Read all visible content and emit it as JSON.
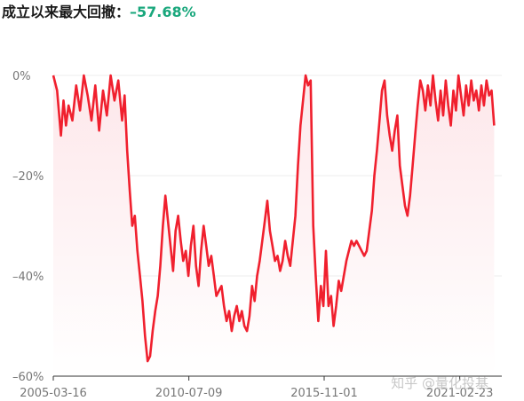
{
  "header": {
    "label": "成立以来最大回撤：",
    "value": "–57.68%"
  },
  "watermark": "知乎 @量化投基",
  "colors": {
    "line": "#f0202e",
    "fill_top": "#fde7ea",
    "grid": "#eeeeee",
    "axis": "#333333",
    "value_green": "#19a77c"
  },
  "chart_data": {
    "type": "area",
    "title": "",
    "xlabel": "",
    "ylabel": "",
    "ylim": [
      -60,
      0
    ],
    "y_ticks": [
      "0%",
      "–20%",
      "–40%",
      "–60%"
    ],
    "y_tick_values": [
      0,
      -20,
      -40,
      -60
    ],
    "x_ticks": [
      "2005-03-16",
      "2010-07-09",
      "2015-11-01",
      "2021-02-23"
    ],
    "x_tick_years": [
      2005.2,
      2010.52,
      2015.83,
      2021.15
    ],
    "x_range": [
      2005.2,
      2022.8
    ],
    "grid": true,
    "series": [
      {
        "values": [
          [
            2005.2,
            0
          ],
          [
            2005.35,
            -3
          ],
          [
            2005.5,
            -12
          ],
          [
            2005.6,
            -5
          ],
          [
            2005.7,
            -10
          ],
          [
            2005.8,
            -6
          ],
          [
            2005.95,
            -9
          ],
          [
            2006.1,
            -2
          ],
          [
            2006.25,
            -7
          ],
          [
            2006.4,
            0
          ],
          [
            2006.55,
            -4
          ],
          [
            2006.7,
            -9
          ],
          [
            2006.85,
            -2
          ],
          [
            2007.0,
            -11
          ],
          [
            2007.15,
            -3
          ],
          [
            2007.3,
            -8
          ],
          [
            2007.45,
            0
          ],
          [
            2007.6,
            -5
          ],
          [
            2007.75,
            -1
          ],
          [
            2007.9,
            -9
          ],
          [
            2008.0,
            -4
          ],
          [
            2008.1,
            -15
          ],
          [
            2008.2,
            -23
          ],
          [
            2008.3,
            -30
          ],
          [
            2008.4,
            -28
          ],
          [
            2008.5,
            -35
          ],
          [
            2008.6,
            -40
          ],
          [
            2008.7,
            -45
          ],
          [
            2008.8,
            -52
          ],
          [
            2008.9,
            -57
          ],
          [
            2009.0,
            -56
          ],
          [
            2009.1,
            -51
          ],
          [
            2009.2,
            -47
          ],
          [
            2009.3,
            -44
          ],
          [
            2009.4,
            -38
          ],
          [
            2009.5,
            -30
          ],
          [
            2009.6,
            -24
          ],
          [
            2009.7,
            -29
          ],
          [
            2009.8,
            -34
          ],
          [
            2009.9,
            -39
          ],
          [
            2010.0,
            -31
          ],
          [
            2010.1,
            -28
          ],
          [
            2010.2,
            -33
          ],
          [
            2010.3,
            -37
          ],
          [
            2010.4,
            -35
          ],
          [
            2010.5,
            -40
          ],
          [
            2010.6,
            -34
          ],
          [
            2010.7,
            -30
          ],
          [
            2010.8,
            -38
          ],
          [
            2010.9,
            -42
          ],
          [
            2011.0,
            -35
          ],
          [
            2011.1,
            -30
          ],
          [
            2011.2,
            -34
          ],
          [
            2011.3,
            -38
          ],
          [
            2011.4,
            -36
          ],
          [
            2011.5,
            -40
          ],
          [
            2011.6,
            -44
          ],
          [
            2011.7,
            -43
          ],
          [
            2011.8,
            -42
          ],
          [
            2011.9,
            -46
          ],
          [
            2012.0,
            -49
          ],
          [
            2012.1,
            -47
          ],
          [
            2012.2,
            -51
          ],
          [
            2012.3,
            -48
          ],
          [
            2012.4,
            -46
          ],
          [
            2012.5,
            -49
          ],
          [
            2012.6,
            -47
          ],
          [
            2012.7,
            -50
          ],
          [
            2012.8,
            -51
          ],
          [
            2012.9,
            -48
          ],
          [
            2013.0,
            -42
          ],
          [
            2013.1,
            -45
          ],
          [
            2013.2,
            -40
          ],
          [
            2013.3,
            -37
          ],
          [
            2013.4,
            -33
          ],
          [
            2013.5,
            -29
          ],
          [
            2013.6,
            -25
          ],
          [
            2013.7,
            -31
          ],
          [
            2013.8,
            -34
          ],
          [
            2013.9,
            -37
          ],
          [
            2014.0,
            -36
          ],
          [
            2014.1,
            -39
          ],
          [
            2014.2,
            -37
          ],
          [
            2014.3,
            -33
          ],
          [
            2014.4,
            -36
          ],
          [
            2014.5,
            -38
          ],
          [
            2014.6,
            -33
          ],
          [
            2014.7,
            -28
          ],
          [
            2014.8,
            -18
          ],
          [
            2014.9,
            -10
          ],
          [
            2015.0,
            -5
          ],
          [
            2015.1,
            0
          ],
          [
            2015.2,
            -2
          ],
          [
            2015.3,
            -1
          ],
          [
            2015.4,
            -30
          ],
          [
            2015.5,
            -40
          ],
          [
            2015.6,
            -49
          ],
          [
            2015.7,
            -42
          ],
          [
            2015.8,
            -46
          ],
          [
            2015.9,
            -35
          ],
          [
            2016.0,
            -46
          ],
          [
            2016.1,
            -44
          ],
          [
            2016.2,
            -50
          ],
          [
            2016.3,
            -46
          ],
          [
            2016.4,
            -41
          ],
          [
            2016.5,
            -43
          ],
          [
            2016.6,
            -40
          ],
          [
            2016.7,
            -37
          ],
          [
            2016.8,
            -35
          ],
          [
            2016.9,
            -33
          ],
          [
            2017.0,
            -34
          ],
          [
            2017.1,
            -33
          ],
          [
            2017.2,
            -34
          ],
          [
            2017.3,
            -35
          ],
          [
            2017.4,
            -36
          ],
          [
            2017.5,
            -35
          ],
          [
            2017.6,
            -31
          ],
          [
            2017.7,
            -27
          ],
          [
            2017.8,
            -20
          ],
          [
            2017.9,
            -15
          ],
          [
            2018.0,
            -9
          ],
          [
            2018.1,
            -3
          ],
          [
            2018.2,
            -1
          ],
          [
            2018.3,
            -8
          ],
          [
            2018.4,
            -12
          ],
          [
            2018.5,
            -15
          ],
          [
            2018.6,
            -11
          ],
          [
            2018.7,
            -8
          ],
          [
            2018.8,
            -18
          ],
          [
            2018.9,
            -22
          ],
          [
            2019.0,
            -26
          ],
          [
            2019.1,
            -28
          ],
          [
            2019.2,
            -24
          ],
          [
            2019.3,
            -18
          ],
          [
            2019.4,
            -12
          ],
          [
            2019.5,
            -6
          ],
          [
            2019.6,
            -1
          ],
          [
            2019.7,
            -3
          ],
          [
            2019.8,
            -7
          ],
          [
            2019.9,
            -2
          ],
          [
            2020.0,
            -6
          ],
          [
            2020.1,
            0
          ],
          [
            2020.2,
            -5
          ],
          [
            2020.3,
            -9
          ],
          [
            2020.4,
            -3
          ],
          [
            2020.5,
            -8
          ],
          [
            2020.6,
            -1
          ],
          [
            2020.7,
            -6
          ],
          [
            2020.8,
            -10
          ],
          [
            2020.9,
            -3
          ],
          [
            2021.0,
            -7
          ],
          [
            2021.1,
            0
          ],
          [
            2021.2,
            -4
          ],
          [
            2021.3,
            -8
          ],
          [
            2021.4,
            -2
          ],
          [
            2021.5,
            -6
          ],
          [
            2021.6,
            -1
          ],
          [
            2021.7,
            -5
          ],
          [
            2021.8,
            -3
          ],
          [
            2021.9,
            -7
          ],
          [
            2022.0,
            -2
          ],
          [
            2022.1,
            -6
          ],
          [
            2022.2,
            -1
          ],
          [
            2022.3,
            -4
          ],
          [
            2022.4,
            -3
          ],
          [
            2022.5,
            -10
          ]
        ]
      }
    ]
  }
}
